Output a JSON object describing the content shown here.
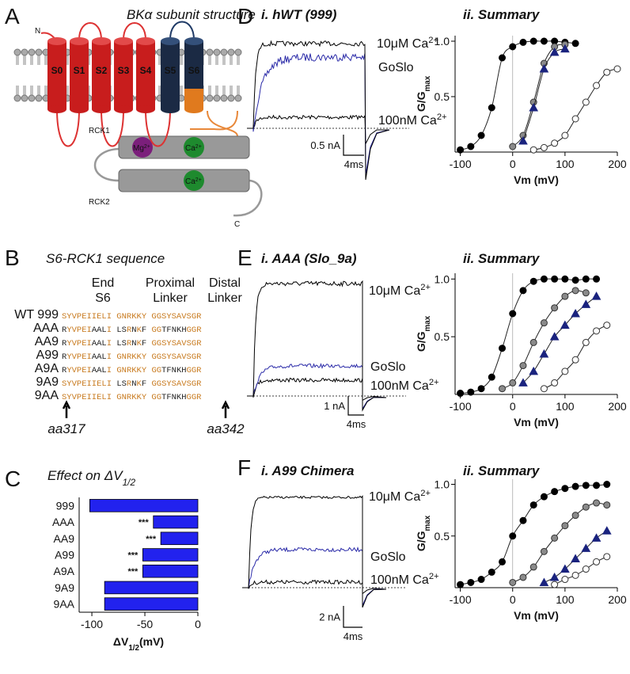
{
  "panels": {
    "A": {
      "letter": "A",
      "title": "BKα subunit structure",
      "n_label": "N",
      "c_label": "C",
      "segments": [
        "S0",
        "S1",
        "S2",
        "S3",
        "S4",
        "S5",
        "S6"
      ],
      "rck1": "RCK1",
      "rck2": "RCK2",
      "mg": {
        "text": "Mg",
        "sup": "2+"
      },
      "ca1": {
        "text": "Ca",
        "sup": "2+"
      },
      "ca2": {
        "text": "Ca",
        "sup": "2+"
      }
    },
    "B": {
      "letter": "B",
      "title": "S6-RCK1  sequence",
      "headers": [
        [
          "End",
          "S6"
        ],
        [
          "Proximal",
          "Linker"
        ],
        [
          "Distal",
          "Linker"
        ]
      ],
      "colors": [
        "#c87a1e",
        "#222222"
      ],
      "rows": [
        {
          "name": "WT 999",
          "runs": [
            [
              "SYVPEIIELI GNRKKY GGSYSAVSGR",
              0
            ]
          ]
        },
        {
          "name": "AAA",
          "runs": [
            [
              "R",
              1
            ],
            [
              "YVPEI",
              0
            ],
            [
              "AAL",
              1
            ],
            [
              "I ",
              0
            ],
            [
              "LS",
              1
            ],
            [
              "R",
              0
            ],
            [
              "N",
              1
            ],
            [
              "K",
              0
            ],
            [
              "F",
              1
            ],
            [
              " GG",
              0
            ],
            [
              "TFNKH",
              1
            ],
            [
              "GGR",
              0
            ]
          ]
        },
        {
          "name": "AA9",
          "runs": [
            [
              "R",
              1
            ],
            [
              "YVPEI",
              0
            ],
            [
              "AAL",
              1
            ],
            [
              "I ",
              0
            ],
            [
              "LS",
              1
            ],
            [
              "R",
              0
            ],
            [
              "N",
              1
            ],
            [
              "K",
              0
            ],
            [
              "F",
              1
            ],
            [
              " GGSYSAVSGR",
              0
            ]
          ]
        },
        {
          "name": "A99",
          "runs": [
            [
              "R",
              1
            ],
            [
              "YVPEI",
              0
            ],
            [
              "AAL",
              1
            ],
            [
              "I GNRKKY GGSYSAVSGR",
              0
            ]
          ]
        },
        {
          "name": "A9A",
          "runs": [
            [
              "R",
              1
            ],
            [
              "YVPEI",
              0
            ],
            [
              "AAL",
              1
            ],
            [
              "I GNRKKY GG",
              0
            ],
            [
              "TFNKH",
              1
            ],
            [
              "GGR",
              0
            ]
          ]
        },
        {
          "name": "9A9",
          "runs": [
            [
              "SYVPEIIELI ",
              0
            ],
            [
              "LS",
              1
            ],
            [
              "R",
              0
            ],
            [
              "N",
              1
            ],
            [
              "K",
              0
            ],
            [
              "F",
              1
            ],
            [
              " GGSYSAVSGR",
              0
            ]
          ]
        },
        {
          "name": "9AA",
          "runs": [
            [
              "SYVPEIIELI GNRKKY GG",
              0
            ],
            [
              "TFNKH",
              1
            ],
            [
              "GGR",
              0
            ]
          ]
        }
      ],
      "markers": [
        "aa317",
        "aa342"
      ]
    },
    "C": {
      "letter": "C"
    },
    "D": {
      "letter": "D",
      "trace_title": "i. hWT (999)",
      "summary_title": "ii. Summary",
      "high": {
        "text": "10μM Ca",
        "sup": "2+"
      },
      "goslo": "GoSlo",
      "low": {
        "text": "100nM Ca",
        "sup": "2+"
      },
      "scale_current": "0.5 nA",
      "scale_time": "4ms"
    },
    "E": {
      "letter": "E",
      "trace_title": "i. AAA (Slo_9a)",
      "summary_title": "ii. Summary",
      "high": {
        "text": "10μM Ca",
        "sup": "2+"
      },
      "goslo": "GoSlo",
      "low": {
        "text": "100nM Ca",
        "sup": "2+"
      },
      "scale_current": "1 nA",
      "scale_time": "4ms"
    },
    "F": {
      "letter": "F",
      "trace_title": "i. A99 Chimera",
      "summary_title": "ii. Summary",
      "high": {
        "text": "10μM Ca",
        "sup": "2+"
      },
      "goslo": "GoSlo",
      "low": {
        "text": "100nM Ca",
        "sup": "2+"
      },
      "scale_current": "2 nA",
      "scale_time": "4ms"
    }
  },
  "chart_data": [
    {
      "type": "bar",
      "orientation": "horizontal",
      "title": {
        "text": "Effect on ΔV",
        "sub": "1/2"
      },
      "categories": [
        "999",
        "AAA",
        "AA9",
        "A99",
        "A9A",
        "9A9",
        "9AA"
      ],
      "values": [
        -102,
        -42,
        -35,
        -52,
        -52,
        -88,
        -88
      ],
      "significance": [
        null,
        "***",
        "***",
        "***",
        "***",
        null,
        null
      ],
      "color": "#2222ee",
      "xlim": [
        -112,
        0
      ],
      "xticks": [
        -100,
        -50,
        0
      ],
      "xlabel": {
        "text": "ΔV",
        "sub": "1/2",
        "rest": "(mV)"
      }
    },
    {
      "type": "scatter",
      "xlim": [
        -110,
        200
      ],
      "ylim": [
        0,
        1.05
      ],
      "xticks": [
        -100,
        0,
        100,
        200
      ],
      "yticks": [
        0.5,
        {
          "value": 1,
          "label": "1.0"
        }
      ],
      "xlabel": "Vm (mV)",
      "ylabel": {
        "text": "G/G",
        "sub": "max"
      },
      "series": [
        {
          "color": "#000000",
          "fill": "#000000",
          "marker": "circle",
          "x": [
            -100,
            -80,
            -60,
            -40,
            -20,
            0,
            20,
            40,
            60,
            80,
            100,
            120
          ],
          "values": [
            0.02,
            0.05,
            0.15,
            0.4,
            0.85,
            0.95,
            0.99,
            1,
            1,
            1,
            0.99,
            0.98
          ]
        },
        {
          "color": "#333333",
          "fill": "#8a8a8a",
          "marker": "circle",
          "x": [
            0,
            20,
            40,
            60,
            80,
            100
          ],
          "values": [
            0.05,
            0.15,
            0.45,
            0.8,
            0.95,
            0.97
          ]
        },
        {
          "color": "#1a237e",
          "fill": "#1a237e",
          "marker": "triangle",
          "x": [
            20,
            40,
            60,
            80,
            100
          ],
          "values": [
            0.1,
            0.4,
            0.75,
            0.9,
            0.93
          ]
        },
        {
          "color": "#333333",
          "fill": "#ffffff",
          "marker": "circle",
          "x": [
            40,
            60,
            80,
            100,
            120,
            140,
            160,
            180,
            200
          ],
          "values": [
            0.02,
            0.04,
            0.08,
            0.15,
            0.3,
            0.45,
            0.6,
            0.72,
            0.75
          ]
        }
      ]
    },
    {
      "type": "scatter",
      "xlim": [
        -110,
        200
      ],
      "ylim": [
        0,
        1.05
      ],
      "xticks": [
        -100,
        0,
        100,
        200
      ],
      "yticks": [
        0.5,
        {
          "value": 1,
          "label": "1.0"
        }
      ],
      "xlabel": "Vm (mV)",
      "ylabel": {
        "text": "G/G",
        "sub": "max"
      },
      "series": [
        {
          "color": "#000000",
          "fill": "#000000",
          "marker": "circle",
          "x": [
            -100,
            -80,
            -60,
            -40,
            -20,
            0,
            20,
            40,
            60,
            80,
            100,
            120,
            140,
            160
          ],
          "values": [
            0.01,
            0.02,
            0.05,
            0.15,
            0.4,
            0.7,
            0.9,
            0.98,
            1,
            1,
            1,
            0.99,
            1,
            1
          ]
        },
        {
          "color": "#333333",
          "fill": "#8a8a8a",
          "marker": "circle",
          "x": [
            -20,
            0,
            20,
            40,
            60,
            80,
            100,
            120,
            140
          ],
          "values": [
            0.05,
            0.1,
            0.25,
            0.45,
            0.62,
            0.75,
            0.85,
            0.9,
            0.88
          ]
        },
        {
          "color": "#1a237e",
          "fill": "#1a237e",
          "marker": "triangle",
          "x": [
            20,
            40,
            60,
            80,
            100,
            120,
            140,
            160
          ],
          "values": [
            0.1,
            0.2,
            0.35,
            0.5,
            0.6,
            0.7,
            0.78,
            0.85
          ]
        },
        {
          "color": "#333333",
          "fill": "#ffffff",
          "marker": "circle",
          "x": [
            60,
            80,
            100,
            120,
            140,
            160,
            180
          ],
          "values": [
            0.05,
            0.1,
            0.2,
            0.3,
            0.45,
            0.55,
            0.6
          ]
        }
      ]
    },
    {
      "type": "scatter",
      "xlim": [
        -110,
        200
      ],
      "ylim": [
        0,
        1.05
      ],
      "xticks": [
        -100,
        0,
        100,
        200
      ],
      "yticks": [
        0.5,
        {
          "value": 1,
          "label": "1.0"
        }
      ],
      "xlabel": "Vm (mV)",
      "ylabel": {
        "text": "G/G",
        "sub": "max"
      },
      "series": [
        {
          "color": "#000000",
          "fill": "#000000",
          "marker": "circle",
          "x": [
            -100,
            -80,
            -60,
            -40,
            -20,
            0,
            20,
            40,
            60,
            80,
            100,
            120,
            140,
            160,
            180
          ],
          "values": [
            0.03,
            0.05,
            0.08,
            0.15,
            0.25,
            0.5,
            0.65,
            0.8,
            0.88,
            0.93,
            0.96,
            0.98,
            0.99,
            0.99,
            1
          ]
        },
        {
          "color": "#333333",
          "fill": "#8a8a8a",
          "marker": "circle",
          "x": [
            0,
            20,
            40,
            60,
            80,
            100,
            120,
            140,
            160,
            180
          ],
          "values": [
            0.05,
            0.1,
            0.2,
            0.35,
            0.48,
            0.6,
            0.7,
            0.78,
            0.82,
            0.8
          ]
        },
        {
          "color": "#1a237e",
          "fill": "#1a237e",
          "marker": "triangle",
          "x": [
            60,
            80,
            100,
            120,
            140,
            160,
            180
          ],
          "values": [
            0.05,
            0.1,
            0.18,
            0.28,
            0.38,
            0.48,
            0.55
          ]
        },
        {
          "color": "#333333",
          "fill": "#ffffff",
          "marker": "circle",
          "x": [
            80,
            100,
            120,
            140,
            160,
            180
          ],
          "values": [
            0.03,
            0.08,
            0.12,
            0.18,
            0.25,
            0.3
          ]
        }
      ]
    }
  ]
}
